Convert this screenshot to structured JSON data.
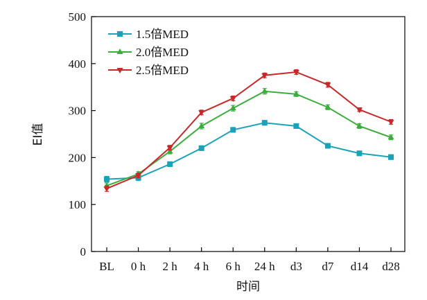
{
  "chart_data": {
    "type": "line",
    "title": "",
    "xlabel": "时间",
    "ylabel": "EI值",
    "ylim": [
      0,
      500
    ],
    "yticks": [
      0,
      100,
      200,
      300,
      400,
      500
    ],
    "categories": [
      "BL",
      "0 h",
      "2 h",
      "4 h",
      "6 h",
      "24 h",
      "d3",
      "d7",
      "d14",
      "d28"
    ],
    "legend_position": "top-left",
    "grid": false,
    "series": [
      {
        "name": "1.5倍MED",
        "color": "#1aa3b8",
        "marker": "square",
        "values": [
          154,
          157,
          186,
          220,
          259,
          274,
          267,
          225,
          209,
          201
        ],
        "errors": [
          6,
          6,
          5,
          5,
          5,
          5,
          5,
          5,
          5,
          5
        ]
      },
      {
        "name": "2.0倍MED",
        "color": "#3cad3c",
        "marker": "triangle-up",
        "values": [
          140,
          165,
          213,
          267,
          305,
          341,
          335,
          307,
          267,
          243
        ],
        "errors": [
          6,
          5,
          5,
          6,
          6,
          6,
          5,
          5,
          5,
          5
        ]
      },
      {
        "name": "2.5倍MED",
        "color": "#c8282a",
        "marker": "triangle-down",
        "values": [
          134,
          162,
          221,
          296,
          326,
          375,
          382,
          355,
          302,
          276
        ],
        "errors": [
          6,
          5,
          5,
          5,
          5,
          5,
          5,
          5,
          4,
          5
        ]
      }
    ]
  }
}
